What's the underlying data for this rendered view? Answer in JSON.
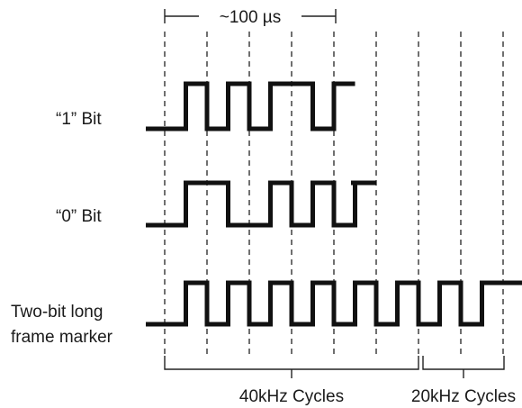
{
  "time_span_label": "~100 µs",
  "rows": [
    {
      "label": "“1” Bit",
      "levels": [
        0,
        1,
        0,
        1,
        0,
        1,
        1,
        0,
        1
      ]
    },
    {
      "label": "“0” Bit",
      "levels": [
        0,
        1,
        1,
        0,
        0,
        1,
        0,
        1,
        0,
        1
      ]
    },
    {
      "label_lines": [
        "Two-bit long",
        "frame marker"
      ],
      "levels": [
        0,
        1,
        0,
        1,
        0,
        1,
        0,
        1,
        0,
        1,
        0,
        1,
        0,
        1,
        0,
        1,
        1,
        0,
        0,
        1
      ]
    }
  ],
  "brackets": [
    {
      "label": "40kHz Cycles"
    },
    {
      "label": "20kHz Cycles"
    }
  ]
}
